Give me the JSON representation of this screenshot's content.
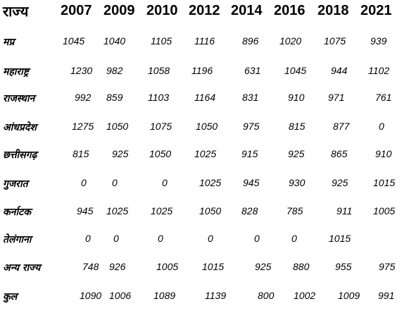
{
  "header": {
    "state_label": "राज्य",
    "years": [
      "2007",
      "2009",
      "2010",
      "2012",
      "2014",
      "2016",
      "2018",
      "2021"
    ]
  },
  "rows": [
    {
      "state": "मप्र",
      "values": [
        "1045",
        "1040",
        "1105",
        "1116",
        "896",
        "1020",
        "1075",
        "939"
      ]
    },
    {
      "state": "महाराष्ट्र",
      "values": [
        "1230",
        "982",
        "1058",
        "1196",
        "631",
        "1045",
        "944",
        "1102"
      ]
    },
    {
      "state": "राजस्थान",
      "values": [
        "992",
        "859",
        "1103",
        "1164",
        "831",
        "910",
        "971",
        "761"
      ]
    },
    {
      "state": "आंधप्रदेश",
      "values": [
        "1275",
        "1050",
        "1075",
        "1050",
        "975",
        "815",
        "877",
        "0"
      ]
    },
    {
      "state": "छत्तीसगढ़",
      "values": [
        "815",
        "925",
        "1050",
        "1025",
        "915",
        "925",
        "865",
        "910"
      ]
    },
    {
      "state": "गुजरात",
      "values": [
        "0",
        "0",
        "0",
        "1025",
        "945",
        "930",
        "925",
        "1015"
      ]
    },
    {
      "state": "कर्नाटक",
      "values": [
        "945",
        "1025",
        "1025",
        "1050",
        "828",
        "785",
        "911",
        "1005"
      ]
    },
    {
      "state": "तेलंगाना",
      "values": [
        "0",
        "0",
        "0",
        "0",
        "0",
        "0",
        "1015",
        ""
      ]
    },
    {
      "state": "अन्य राज्य",
      "values": [
        "748",
        "926",
        "1005",
        "1015",
        "925",
        "880",
        "955",
        "975"
      ]
    },
    {
      "state": "कुल",
      "values": [
        "1090",
        "1006",
        "1089",
        "1139",
        "800",
        "1002",
        "1009",
        "991"
      ]
    }
  ]
}
